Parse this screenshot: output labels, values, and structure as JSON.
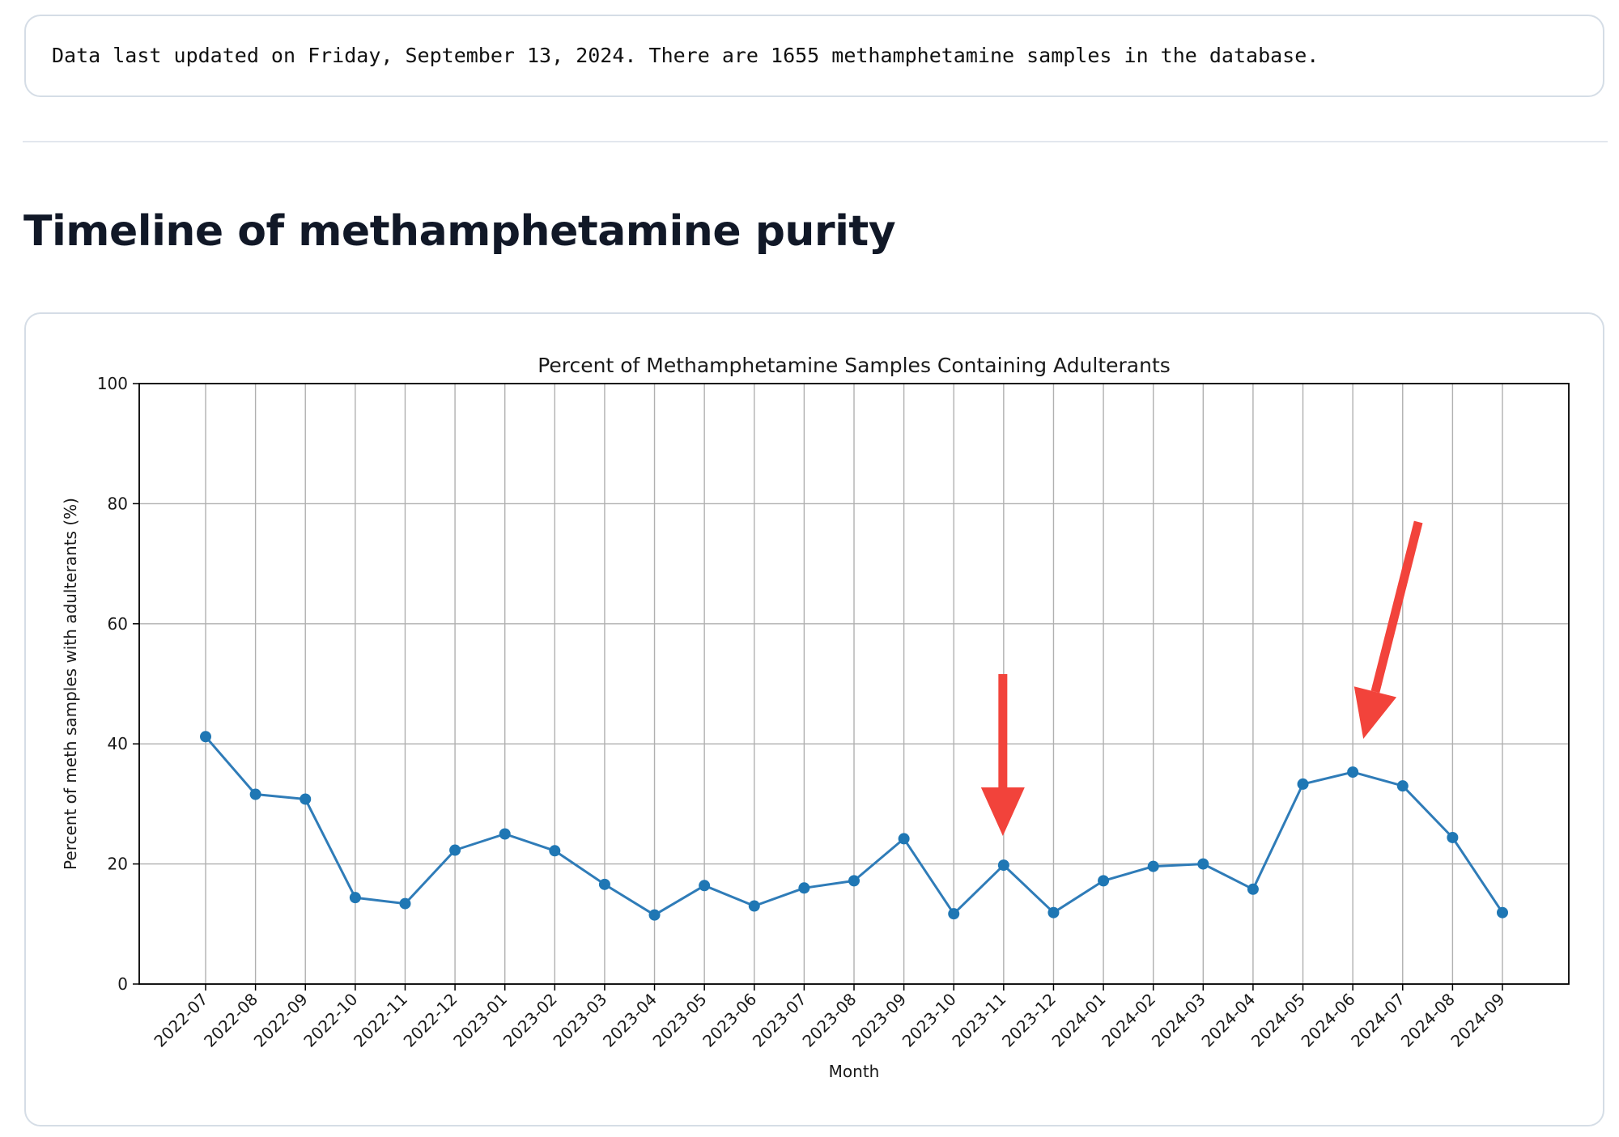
{
  "info": {
    "text": "Data last updated on Friday, September 13, 2024. There are 1655 methamphetamine samples in the database."
  },
  "section": {
    "heading": "Timeline of methamphetamine purity"
  },
  "colors": {
    "line": "#2f7cb8",
    "marker": "#1f77b4",
    "grid": "#b0b0b0",
    "arrow": "#f2433b"
  },
  "chart_data": {
    "type": "line",
    "title": "Percent of Methamphetamine Samples Containing Adulterants",
    "xlabel": "Month",
    "ylabel": "Percent of meth samples with adulterants (%)",
    "ylim": [
      0,
      100
    ],
    "yticks": [
      0,
      20,
      40,
      60,
      80,
      100
    ],
    "grid": true,
    "x": [
      "2022-07",
      "2022-08",
      "2022-09",
      "2022-10",
      "2022-11",
      "2022-12",
      "2023-01",
      "2023-02",
      "2023-03",
      "2023-04",
      "2023-05",
      "2023-06",
      "2023-07",
      "2023-08",
      "2023-09",
      "2023-10",
      "2023-11",
      "2023-12",
      "2024-01",
      "2024-02",
      "2024-03",
      "2024-04",
      "2024-05",
      "2024-06",
      "2024-07",
      "2024-08",
      "2024-09"
    ],
    "series": [
      {
        "values": [
          41.2,
          31.6,
          30.8,
          14.4,
          13.4,
          22.3,
          25.0,
          22.2,
          16.6,
          11.5,
          16.4,
          13.0,
          16.0,
          17.2,
          24.2,
          11.7,
          19.8,
          11.9,
          17.2,
          19.6,
          20.0,
          15.8,
          33.3,
          35.3,
          33.0,
          24.4,
          11.9
        ]
      }
    ],
    "annotations": [
      {
        "type": "arrow",
        "points_to": "2023-11"
      },
      {
        "type": "arrow",
        "points_to": "2024-06"
      }
    ]
  }
}
